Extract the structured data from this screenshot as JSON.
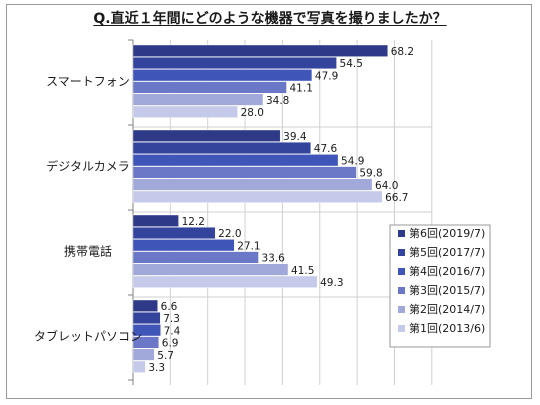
{
  "chart_data": {
    "type": "bar",
    "orientation": "horizontal",
    "title": "Q.直近１年間にどのような機器で写真を撮りましたか？",
    "categories": [
      "スマートフォン",
      "デジタルカメラ",
      "携帯電話",
      "タブレットパソコン"
    ],
    "series": [
      {
        "name": "第6回(2019/7)",
        "color": "#2e3a87",
        "values": [
          68.2,
          39.4,
          12.2,
          6.6
        ]
      },
      {
        "name": "第5回(2017/7)",
        "color": "#34439c",
        "values": [
          54.5,
          47.6,
          22.0,
          7.3
        ]
      },
      {
        "name": "第4回(2016/7)",
        "color": "#3f55b8",
        "values": [
          47.9,
          54.9,
          27.1,
          7.4
        ]
      },
      {
        "name": "第3回(2015/7)",
        "color": "#6b78c8",
        "values": [
          41.1,
          59.8,
          33.6,
          6.9
        ]
      },
      {
        "name": "第2回(2014/7)",
        "color": "#a1a8da",
        "values": [
          34.8,
          64.0,
          41.5,
          5.7
        ]
      },
      {
        "name": "第1回(2013/6)",
        "color": "#c5c9ea",
        "values": [
          28.0,
          66.7,
          49.3,
          3.3
        ]
      }
    ],
    "xlim": [
      0,
      80
    ],
    "value_labels": [
      [
        "68.2",
        "54.5",
        "47.9",
        "41.1",
        "34.8",
        "28.0"
      ],
      [
        "39.4",
        "47.6",
        "54.9",
        "59.8",
        "64.0",
        "66.7"
      ],
      [
        "12.2",
        "22.0",
        "27.1",
        "33.6",
        "41.5",
        "49.3"
      ],
      [
        "6.6",
        "7.3",
        "7.4",
        "6.9",
        "5.7",
        "3.3"
      ]
    ],
    "grid": true,
    "legend_position": "right"
  }
}
